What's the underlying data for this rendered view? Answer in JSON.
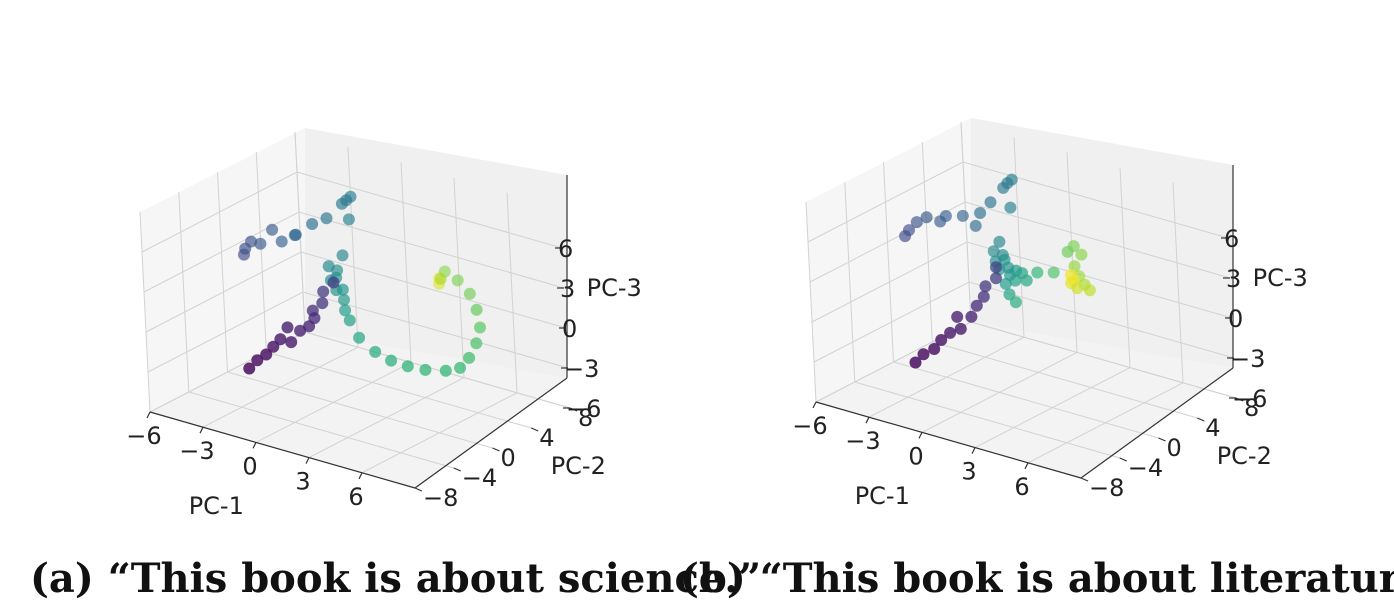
{
  "captions": [
    "(a) “This book is about science.”",
    "(b) “This book is about literature.”"
  ],
  "chart_data": [
    {
      "type": "scatter",
      "projection": "3d",
      "colormap": "viridis",
      "xlabel": "PC-1",
      "ylabel": "PC-2",
      "zlabel": "PC-3",
      "xlim": [
        -6,
        9
      ],
      "ylim": [
        -8,
        8
      ],
      "zlim": [
        -6,
        9
      ],
      "xticks": [
        "−6",
        "−3",
        "0",
        "3",
        "6"
      ],
      "yticks": [
        "−8",
        "−4",
        "0",
        "4",
        "8"
      ],
      "zticks": [
        "−6",
        "−3",
        "0",
        "3",
        "6"
      ],
      "grid": true,
      "points": [
        {
          "x": -1.6,
          "y": -5.5,
          "z": -2.0,
          "c": 0.02
        },
        {
          "x": -1.4,
          "y": -5.0,
          "z": -1.5,
          "c": 0.03
        },
        {
          "x": -1.1,
          "y": -4.6,
          "z": -1.1,
          "c": 0.04
        },
        {
          "x": -0.9,
          "y": -4.2,
          "z": -0.6,
          "c": 0.05
        },
        {
          "x": -0.7,
          "y": -3.8,
          "z": -0.1,
          "c": 0.06
        },
        {
          "x": -0.2,
          "y": -3.6,
          "z": -0.2,
          "c": 0.07
        },
        {
          "x": -0.6,
          "y": -3.2,
          "z": 0.6,
          "c": 0.08
        },
        {
          "x": 0.0,
          "y": -3.0,
          "z": 0.5,
          "c": 0.09
        },
        {
          "x": 0.3,
          "y": -2.6,
          "z": 0.8,
          "c": 0.1
        },
        {
          "x": 0.4,
          "y": -2.2,
          "z": 1.3,
          "c": 0.12
        },
        {
          "x": 0.1,
          "y": -1.8,
          "z": 1.6,
          "c": 0.13
        },
        {
          "x": 0.5,
          "y": -1.5,
          "z": 2.2,
          "c": 0.15
        },
        {
          "x": 0.3,
          "y": -1.0,
          "z": 2.8,
          "c": 0.17
        },
        {
          "x": 0.8,
          "y": -0.8,
          "z": 3.6,
          "c": 0.18
        },
        {
          "x": -5.0,
          "y": 0.5,
          "z": 3.0,
          "c": 0.22
        },
        {
          "x": -4.8,
          "y": 0.3,
          "z": 3.6,
          "c": 0.24
        },
        {
          "x": -4.5,
          "y": 0.4,
          "z": 4.2,
          "c": 0.25
        },
        {
          "x": -4.2,
          "y": 0.8,
          "z": 4.0,
          "c": 0.27
        },
        {
          "x": -3.6,
          "y": 1.0,
          "z": 5.2,
          "c": 0.28
        },
        {
          "x": -3.2,
          "y": 1.2,
          "z": 4.4,
          "c": 0.3
        },
        {
          "x": -2.6,
          "y": 1.5,
          "z": 5.0,
          "c": 0.32
        },
        {
          "x": -2.2,
          "y": 0.9,
          "z": 5.4,
          "c": 0.34
        },
        {
          "x": -1.4,
          "y": 1.2,
          "z": 6.4,
          "c": 0.36
        },
        {
          "x": -0.9,
          "y": 1.8,
          "z": 6.8,
          "c": 0.38
        },
        {
          "x": -0.2,
          "y": 2.2,
          "z": 8.0,
          "c": 0.4
        },
        {
          "x": 0.0,
          "y": 2.3,
          "z": 8.3,
          "c": 0.41
        },
        {
          "x": 0.2,
          "y": 2.4,
          "z": 8.6,
          "c": 0.42
        },
        {
          "x": 0.1,
          "y": 2.3,
          "z": 6.9,
          "c": 0.44
        },
        {
          "x": -0.2,
          "y": 2.0,
          "z": 4.2,
          "c": 0.45
        },
        {
          "x": -0.8,
          "y": 1.6,
          "z": 3.3,
          "c": 0.47
        },
        {
          "x": -0.5,
          "y": 1.9,
          "z": 3.0,
          "c": 0.48
        },
        {
          "x": -0.6,
          "y": 1.4,
          "z": 2.4,
          "c": 0.49
        },
        {
          "x": -0.4,
          "y": 1.6,
          "z": 2.6,
          "c": 0.5
        },
        {
          "x": -0.2,
          "y": 1.2,
          "z": 1.9,
          "c": 0.51
        },
        {
          "x": 0.0,
          "y": 1.5,
          "z": 1.9,
          "c": 0.52
        },
        {
          "x": 0.1,
          "y": 1.4,
          "z": 1.2,
          "c": 0.53
        },
        {
          "x": 0.3,
          "y": 1.1,
          "z": 0.6,
          "c": 0.55
        },
        {
          "x": 0.6,
          "y": 1.0,
          "z": 0.0,
          "c": 0.57
        },
        {
          "x": 1.2,
          "y": 0.8,
          "z": -1.0,
          "c": 0.59
        },
        {
          "x": 2.2,
          "y": 0.6,
          "z": -1.6,
          "c": 0.61
        },
        {
          "x": 3.2,
          "y": 0.4,
          "z": -1.8,
          "c": 0.63
        },
        {
          "x": 4.2,
          "y": 0.3,
          "z": -1.8,
          "c": 0.65
        },
        {
          "x": 5.2,
          "y": 0.3,
          "z": -1.7,
          "c": 0.66
        },
        {
          "x": 6.2,
          "y": 0.6,
          "z": -1.5,
          "c": 0.67
        },
        {
          "x": 6.8,
          "y": 1.0,
          "z": -1.2,
          "c": 0.68
        },
        {
          "x": 7.0,
          "y": 1.6,
          "z": -0.6,
          "c": 0.7
        },
        {
          "x": 7.0,
          "y": 2.4,
          "z": 0.2,
          "c": 0.72
        },
        {
          "x": 6.8,
          "y": 3.2,
          "z": 1.0,
          "c": 0.74
        },
        {
          "x": 6.2,
          "y": 4.0,
          "z": 1.8,
          "c": 0.76
        },
        {
          "x": 5.4,
          "y": 4.8,
          "z": 2.4,
          "c": 0.78
        },
        {
          "x": 4.4,
          "y": 5.4,
          "z": 2.8,
          "c": 0.8
        },
        {
          "x": 3.4,
          "y": 5.9,
          "z": 2.9,
          "c": 0.82
        },
        {
          "x": 3.2,
          "y": 5.8,
          "z": 2.3,
          "c": 0.86
        },
        {
          "x": 3.1,
          "y": 5.8,
          "z": 1.9,
          "c": 0.95
        },
        {
          "x": 3.0,
          "y": 6.0,
          "z": 2.2,
          "c": 0.98
        }
      ]
    },
    {
      "type": "scatter",
      "projection": "3d",
      "colormap": "viridis",
      "xlabel": "PC-1",
      "ylabel": "PC-2",
      "zlabel": "PC-3",
      "xlim": [
        -6,
        9
      ],
      "ylim": [
        -8,
        8
      ],
      "zlim": [
        -6,
        9
      ],
      "xticks": [
        "−6",
        "−3",
        "0",
        "3",
        "6"
      ],
      "yticks": [
        "−8",
        "−4",
        "0",
        "4",
        "8"
      ],
      "zticks": [
        "−6",
        "−3",
        "0",
        "3",
        "6"
      ],
      "grid": true,
      "points": [
        {
          "x": -1.6,
          "y": -5.5,
          "z": -2.3,
          "c": 0.02
        },
        {
          "x": -1.4,
          "y": -5.0,
          "z": -1.8,
          "c": 0.03
        },
        {
          "x": -1.0,
          "y": -4.6,
          "z": -1.4,
          "c": 0.04
        },
        {
          "x": -0.8,
          "y": -4.2,
          "z": -0.8,
          "c": 0.05
        },
        {
          "x": -0.5,
          "y": -3.8,
          "z": -0.3,
          "c": 0.06
        },
        {
          "x": -0.1,
          "y": -3.4,
          "z": 0.0,
          "c": 0.07
        },
        {
          "x": -0.5,
          "y": -3.0,
          "z": 0.6,
          "c": 0.08
        },
        {
          "x": 0.2,
          "y": -2.8,
          "z": 0.8,
          "c": 0.1
        },
        {
          "x": 0.2,
          "y": -2.2,
          "z": 1.4,
          "c": 0.12
        },
        {
          "x": 0.4,
          "y": -1.8,
          "z": 2.0,
          "c": 0.14
        },
        {
          "x": 0.3,
          "y": -1.4,
          "z": 2.6,
          "c": 0.16
        },
        {
          "x": 0.7,
          "y": -1.0,
          "z": 3.2,
          "c": 0.18
        },
        {
          "x": 0.5,
          "y": -0.6,
          "z": 3.8,
          "c": 0.19
        },
        {
          "x": -5.2,
          "y": 0.4,
          "z": 3.6,
          "c": 0.22
        },
        {
          "x": -4.9,
          "y": 0.3,
          "z": 4.2,
          "c": 0.24
        },
        {
          "x": -4.6,
          "y": 0.6,
          "z": 4.8,
          "c": 0.25
        },
        {
          "x": -4.2,
          "y": 0.9,
          "z": 5.2,
          "c": 0.27
        },
        {
          "x": -3.6,
          "y": 1.2,
          "z": 5.0,
          "c": 0.28
        },
        {
          "x": -3.2,
          "y": 1.1,
          "z": 5.6,
          "c": 0.3
        },
        {
          "x": -2.4,
          "y": 1.4,
          "z": 5.8,
          "c": 0.32
        },
        {
          "x": -1.8,
          "y": 1.6,
          "z": 5.2,
          "c": 0.34
        },
        {
          "x": -1.4,
          "y": 1.4,
          "z": 6.4,
          "c": 0.36
        },
        {
          "x": -1.0,
          "y": 1.8,
          "z": 7.2,
          "c": 0.38
        },
        {
          "x": -0.4,
          "y": 2.1,
          "z": 8.4,
          "c": 0.4
        },
        {
          "x": -0.2,
          "y": 2.2,
          "z": 8.8,
          "c": 0.41
        },
        {
          "x": 0.0,
          "y": 2.3,
          "z": 9.1,
          "c": 0.42
        },
        {
          "x": -0.1,
          "y": 2.2,
          "z": 7.0,
          "c": 0.44
        },
        {
          "x": -0.6,
          "y": 1.8,
          "z": 4.4,
          "c": 0.46
        },
        {
          "x": -0.9,
          "y": 1.7,
          "z": 3.6,
          "c": 0.47
        },
        {
          "x": -0.5,
          "y": 1.9,
          "z": 3.4,
          "c": 0.48
        },
        {
          "x": -0.7,
          "y": 1.5,
          "z": 3.0,
          "c": 0.49
        },
        {
          "x": -0.3,
          "y": 1.7,
          "z": 3.2,
          "c": 0.5
        },
        {
          "x": -0.4,
          "y": 1.3,
          "z": 2.6,
          "c": 0.51
        },
        {
          "x": 0.0,
          "y": 1.5,
          "z": 2.8,
          "c": 0.52
        },
        {
          "x": 0.2,
          "y": 1.3,
          "z": 2.4,
          "c": 0.53
        },
        {
          "x": 0.5,
          "y": 1.4,
          "z": 2.8,
          "c": 0.54
        },
        {
          "x": 0.1,
          "y": 1.0,
          "z": 1.8,
          "c": 0.55
        },
        {
          "x": 0.6,
          "y": 1.1,
          "z": 2.2,
          "c": 0.56
        },
        {
          "x": 0.9,
          "y": 1.3,
          "z": 2.8,
          "c": 0.57
        },
        {
          "x": 0.4,
          "y": 0.8,
          "z": 1.2,
          "c": 0.58
        },
        {
          "x": 1.2,
          "y": 1.2,
          "z": 2.4,
          "c": 0.6
        },
        {
          "x": 0.8,
          "y": 0.7,
          "z": 0.8,
          "c": 0.62
        },
        {
          "x": 1.6,
          "y": 1.6,
          "z": 3.0,
          "c": 0.66
        },
        {
          "x": 2.2,
          "y": 2.2,
          "z": 3.0,
          "c": 0.72
        },
        {
          "x": 2.6,
          "y": 3.0,
          "z": 4.4,
          "c": 0.78
        },
        {
          "x": 2.8,
          "y": 3.3,
          "z": 4.8,
          "c": 0.8
        },
        {
          "x": 3.1,
          "y": 3.5,
          "z": 4.2,
          "c": 0.82
        },
        {
          "x": 2.9,
          "y": 3.1,
          "z": 3.4,
          "c": 0.84
        },
        {
          "x": 3.2,
          "y": 3.0,
          "z": 2.8,
          "c": 0.86
        },
        {
          "x": 3.6,
          "y": 2.8,
          "z": 2.4,
          "c": 0.88
        },
        {
          "x": 4.0,
          "y": 2.6,
          "z": 2.2,
          "c": 0.9
        },
        {
          "x": 3.4,
          "y": 2.4,
          "z": 2.2,
          "c": 0.93
        },
        {
          "x": 3.0,
          "y": 2.5,
          "z": 2.4,
          "c": 0.96
        },
        {
          "x": 2.9,
          "y": 2.7,
          "z": 2.9,
          "c": 0.98
        },
        {
          "x": 3.1,
          "y": 2.6,
          "z": 2.6,
          "c": 0.99
        }
      ]
    }
  ]
}
